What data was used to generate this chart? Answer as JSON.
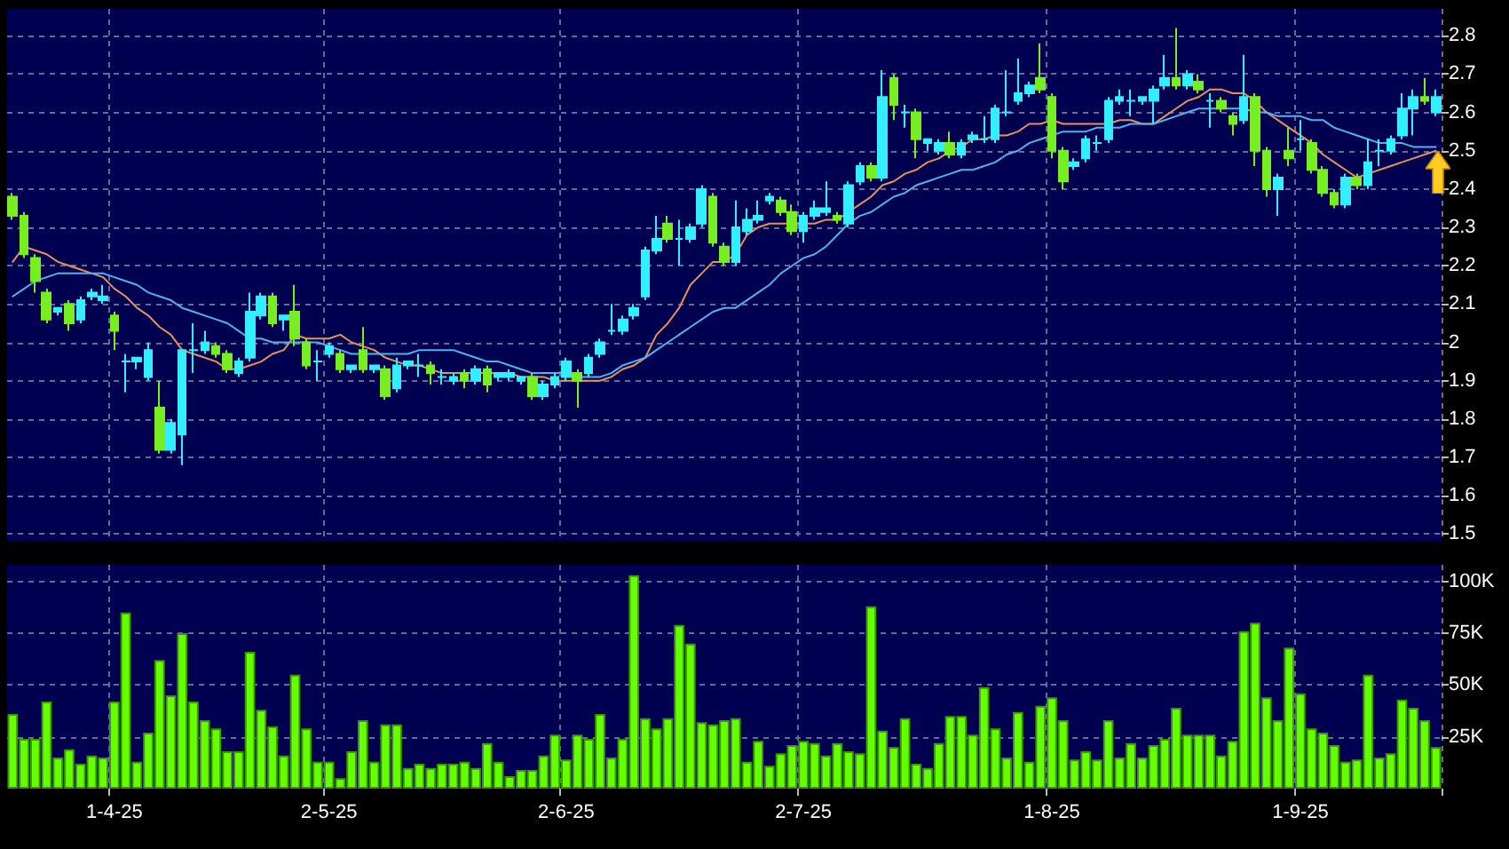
{
  "chart_data": [
    {
      "type": "candlestick",
      "categories": [
        null,
        null,
        null,
        null,
        null,
        null,
        null,
        null,
        null,
        null,
        null,
        null,
        null,
        null,
        null,
        null,
        null,
        null,
        null,
        null,
        null,
        null,
        null,
        null,
        null,
        null,
        null,
        null,
        null,
        null,
        null,
        null,
        null,
        null,
        null,
        null,
        null,
        null,
        null,
        null,
        null,
        null,
        null,
        null,
        null,
        null,
        null,
        null,
        null,
        null,
        null,
        null,
        null,
        null,
        null,
        null,
        null,
        null,
        null,
        null,
        null,
        null,
        null,
        null,
        null,
        null,
        null,
        null,
        null,
        null,
        null,
        null,
        null,
        null,
        null,
        null,
        null,
        null,
        null,
        null,
        null,
        null,
        null,
        null,
        null,
        null,
        null,
        null,
        null,
        null,
        null,
        null,
        null,
        null,
        null,
        null,
        null,
        null,
        null,
        null,
        null,
        null,
        null,
        null,
        null,
        null,
        null,
        null,
        null,
        null,
        null,
        null,
        null,
        null,
        null,
        null,
        null,
        null,
        null,
        null,
        null,
        null,
        null,
        null,
        null,
        null,
        null
      ],
      "ohlc": [
        [
          2.38,
          2.39,
          2.32,
          2.33
        ],
        [
          2.33,
          2.34,
          2.22,
          2.23
        ],
        [
          2.22,
          2.23,
          2.13,
          2.16
        ],
        [
          2.13,
          2.14,
          2.05,
          2.06
        ],
        [
          2.08,
          2.09,
          2.07,
          2.09
        ],
        [
          2.1,
          2.11,
          2.03,
          2.05
        ],
        [
          2.06,
          2.12,
          2.05,
          2.11
        ],
        [
          2.12,
          2.14,
          2.11,
          2.13
        ],
        [
          2.11,
          2.15,
          2.1,
          2.12
        ],
        [
          2.07,
          2.08,
          1.98,
          2.03
        ],
        [
          1.95,
          1.97,
          1.87,
          1.95
        ],
        [
          1.95,
          1.96,
          1.93,
          1.96
        ],
        [
          1.91,
          2.0,
          1.9,
          1.98
        ],
        [
          1.83,
          1.9,
          1.71,
          1.72
        ],
        [
          1.72,
          1.8,
          1.71,
          1.79
        ],
        [
          1.76,
          1.98,
          1.68,
          1.98
        ],
        [
          1.98,
          2.05,
          1.92,
          1.98
        ],
        [
          1.98,
          2.03,
          1.97,
          2.0
        ],
        [
          1.99,
          2.0,
          1.96,
          1.97
        ],
        [
          1.97,
          1.98,
          1.92,
          1.93
        ],
        [
          1.92,
          1.96,
          1.91,
          1.95
        ],
        [
          1.96,
          2.13,
          1.95,
          2.08
        ],
        [
          2.07,
          2.13,
          2.06,
          2.12
        ],
        [
          2.12,
          2.13,
          2.04,
          2.05
        ],
        [
          2.06,
          2.07,
          2.03,
          2.07
        ],
        [
          2.08,
          2.15,
          1.99,
          2.01
        ],
        [
          2.0,
          2.01,
          1.93,
          1.94
        ],
        [
          1.95,
          1.98,
          1.9,
          1.95
        ],
        [
          1.97,
          2.0,
          1.96,
          1.99
        ],
        [
          1.97,
          1.98,
          1.92,
          1.93
        ],
        [
          1.93,
          1.94,
          1.92,
          1.94
        ],
        [
          1.98,
          2.04,
          1.92,
          1.93
        ],
        [
          1.93,
          1.94,
          1.92,
          1.94
        ],
        [
          1.93,
          1.94,
          1.85,
          1.86
        ],
        [
          1.88,
          1.96,
          1.87,
          1.94
        ],
        [
          1.94,
          1.95,
          1.93,
          1.95
        ],
        [
          1.94,
          1.97,
          1.91,
          1.94
        ],
        [
          1.94,
          1.95,
          1.89,
          1.92
        ],
        [
          1.91,
          1.93,
          1.89,
          1.91
        ],
        [
          1.9,
          1.92,
          1.89,
          1.91
        ],
        [
          1.92,
          1.93,
          1.88,
          1.9
        ],
        [
          1.9,
          1.94,
          1.89,
          1.93
        ],
        [
          1.93,
          1.94,
          1.87,
          1.89
        ],
        [
          1.91,
          1.92,
          1.9,
          1.92
        ],
        [
          1.91,
          1.93,
          1.9,
          1.92
        ],
        [
          1.9,
          1.91,
          1.89,
          1.91
        ],
        [
          1.91,
          1.92,
          1.85,
          1.86
        ],
        [
          1.86,
          1.9,
          1.85,
          1.89
        ],
        [
          1.89,
          1.92,
          1.88,
          1.91
        ],
        [
          1.91,
          1.96,
          1.9,
          1.95
        ],
        [
          1.92,
          1.93,
          1.83,
          1.9
        ],
        [
          1.92,
          1.97,
          1.91,
          1.96
        ],
        [
          1.97,
          2.01,
          1.96,
          2.0
        ],
        [
          2.03,
          2.1,
          2.02,
          2.03
        ],
        [
          2.03,
          2.07,
          2.02,
          2.06
        ],
        [
          2.07,
          2.1,
          2.06,
          2.09
        ],
        [
          2.12,
          2.25,
          2.11,
          2.24
        ],
        [
          2.24,
          2.33,
          2.23,
          2.27
        ],
        [
          2.31,
          2.33,
          2.26,
          2.27
        ],
        [
          2.27,
          2.32,
          2.2,
          2.27
        ],
        [
          2.27,
          2.31,
          2.26,
          2.3
        ],
        [
          2.31,
          2.41,
          2.3,
          2.4
        ],
        [
          2.38,
          2.39,
          2.25,
          2.26
        ],
        [
          2.25,
          2.26,
          2.2,
          2.21
        ],
        [
          2.21,
          2.37,
          2.2,
          2.3
        ],
        [
          2.29,
          2.35,
          2.28,
          2.32
        ],
        [
          2.32,
          2.37,
          2.31,
          2.33
        ],
        [
          2.37,
          2.39,
          2.36,
          2.38
        ],
        [
          2.37,
          2.38,
          2.33,
          2.34
        ],
        [
          2.34,
          2.36,
          2.28,
          2.29
        ],
        [
          2.29,
          2.34,
          2.26,
          2.33
        ],
        [
          2.33,
          2.37,
          2.32,
          2.35
        ],
        [
          2.34,
          2.42,
          2.33,
          2.35
        ],
        [
          2.33,
          2.34,
          2.31,
          2.32
        ],
        [
          2.31,
          2.42,
          2.3,
          2.41
        ],
        [
          2.42,
          2.47,
          2.41,
          2.46
        ],
        [
          2.46,
          2.47,
          2.42,
          2.43
        ],
        [
          2.43,
          2.71,
          2.42,
          2.64
        ],
        [
          2.69,
          2.7,
          2.58,
          2.62
        ],
        [
          2.6,
          2.62,
          2.56,
          2.6
        ],
        [
          2.6,
          2.61,
          2.48,
          2.53
        ],
        [
          2.52,
          2.53,
          2.5,
          2.53
        ],
        [
          2.5,
          2.53,
          2.49,
          2.52
        ],
        [
          2.52,
          2.55,
          2.48,
          2.49
        ],
        [
          2.49,
          2.53,
          2.48,
          2.52
        ],
        [
          2.53,
          2.55,
          2.52,
          2.54
        ],
        [
          2.53,
          2.59,
          2.52,
          2.53
        ],
        [
          2.53,
          2.62,
          2.52,
          2.61
        ],
        [
          2.6,
          2.71,
          2.59,
          2.6
        ],
        [
          2.63,
          2.74,
          2.62,
          2.65
        ],
        [
          2.65,
          2.68,
          2.64,
          2.67
        ],
        [
          2.69,
          2.78,
          2.65,
          2.66
        ],
        [
          2.64,
          2.65,
          2.48,
          2.5
        ],
        [
          2.5,
          2.51,
          2.4,
          2.42
        ],
        [
          2.46,
          2.48,
          2.45,
          2.47
        ],
        [
          2.48,
          2.54,
          2.47,
          2.53
        ],
        [
          2.52,
          2.54,
          2.5,
          2.52
        ],
        [
          2.53,
          2.64,
          2.52,
          2.63
        ],
        [
          2.63,
          2.66,
          2.62,
          2.64
        ],
        [
          2.63,
          2.66,
          2.59,
          2.63
        ],
        [
          2.63,
          2.64,
          2.62,
          2.64
        ],
        [
          2.63,
          2.67,
          2.57,
          2.66
        ],
        [
          2.67,
          2.75,
          2.66,
          2.69
        ],
        [
          2.69,
          2.82,
          2.66,
          2.67
        ],
        [
          2.67,
          2.71,
          2.66,
          2.7
        ],
        [
          2.68,
          2.7,
          2.65,
          2.66
        ],
        [
          2.63,
          2.65,
          2.56,
          2.63
        ],
        [
          2.63,
          2.64,
          2.6,
          2.61
        ],
        [
          2.59,
          2.6,
          2.54,
          2.57
        ],
        [
          2.58,
          2.75,
          2.57,
          2.64
        ],
        [
          2.64,
          2.65,
          2.46,
          2.5
        ],
        [
          2.5,
          2.51,
          2.38,
          2.4
        ],
        [
          2.4,
          2.44,
          2.33,
          2.43
        ],
        [
          2.5,
          2.56,
          2.46,
          2.48
        ],
        [
          2.53,
          2.58,
          2.5,
          2.53
        ],
        [
          2.52,
          2.53,
          2.44,
          2.45
        ],
        [
          2.45,
          2.46,
          2.38,
          2.39
        ],
        [
          2.39,
          2.4,
          2.35,
          2.36
        ],
        [
          2.36,
          2.44,
          2.35,
          2.43
        ],
        [
          2.43,
          2.44,
          2.4,
          2.41
        ],
        [
          2.41,
          2.53,
          2.4,
          2.47
        ],
        [
          2.5,
          2.53,
          2.46,
          2.5
        ],
        [
          2.5,
          2.54,
          2.49,
          2.53
        ],
        [
          2.54,
          2.65,
          2.53,
          2.61
        ],
        [
          2.61,
          2.66,
          2.54,
          2.64
        ],
        [
          2.64,
          2.69,
          2.62,
          2.63
        ],
        [
          2.6,
          2.66,
          2.59,
          2.64
        ]
      ],
      "colors": [
        "#77ee22",
        "#77ee22",
        "#77ee22",
        "#77ee22",
        "#33eeff",
        "#77ee22",
        "#33eeff",
        "#33eeff",
        "#33eeff",
        "#77ee22",
        "#33eeff",
        "#33eeff",
        "#33eeff",
        "#77ee22",
        "#33eeff",
        "#33eeff",
        "#33eeff",
        "#33eeff",
        "#77ee22",
        "#77ee22",
        "#33eeff",
        "#33eeff",
        "#33eeff",
        "#77ee22",
        "#33eeff",
        "#77ee22",
        "#77ee22",
        "#33eeff",
        "#33eeff",
        "#77ee22",
        "#33eeff",
        "#77ee22",
        "#33eeff",
        "#77ee22",
        "#33eeff",
        "#33eeff",
        "#33eeff",
        "#77ee22",
        "#33eeff",
        "#33eeff",
        "#77ee22",
        "#33eeff",
        "#77ee22",
        "#33eeff",
        "#33eeff",
        "#33eeff",
        "#77ee22",
        "#33eeff",
        "#33eeff",
        "#33eeff",
        "#77ee22",
        "#33eeff",
        "#33eeff",
        "#33eeff",
        "#33eeff",
        "#33eeff",
        "#33eeff",
        "#33eeff",
        "#77ee22",
        "#33eeff",
        "#33eeff",
        "#33eeff",
        "#77ee22",
        "#77ee22",
        "#33eeff",
        "#33eeff",
        "#33eeff",
        "#33eeff",
        "#77ee22",
        "#77ee22",
        "#33eeff",
        "#33eeff",
        "#33eeff",
        "#77ee22",
        "#33eeff",
        "#33eeff",
        "#77ee22",
        "#33eeff",
        "#77ee22",
        "#33eeff",
        "#77ee22",
        "#33eeff",
        "#33eeff",
        "#77ee22",
        "#33eeff",
        "#33eeff",
        "#33eeff",
        "#33eeff",
        "#33eeff",
        "#33eeff",
        "#33eeff",
        "#77ee22",
        "#77ee22",
        "#77ee22",
        "#33eeff",
        "#33eeff",
        "#33eeff",
        "#33eeff",
        "#33eeff",
        "#33eeff",
        "#33eeff",
        "#33eeff",
        "#33eeff",
        "#77ee22",
        "#33eeff",
        "#77ee22",
        "#33eeff",
        "#77ee22",
        "#77ee22",
        "#33eeff",
        "#77ee22",
        "#77ee22",
        "#33eeff",
        "#77ee22",
        "#33eeff",
        "#77ee22",
        "#77ee22",
        "#77ee22",
        "#33eeff",
        "#77ee22",
        "#33eeff",
        "#33eeff",
        "#33eeff",
        "#33eeff",
        "#33eeff",
        "#77ee22",
        "#33eeff"
      ],
      "series": [
        {
          "type": "line",
          "color": "#e8915a",
          "values": [
            2.21,
            2.25,
            2.24,
            2.23,
            2.21,
            2.2,
            2.19,
            2.18,
            2.17,
            2.14,
            2.12,
            2.09,
            2.07,
            2.04,
            2.02,
            1.98,
            1.97,
            1.96,
            1.95,
            1.93,
            1.93,
            1.94,
            1.95,
            1.97,
            1.98,
            2.02,
            2.01,
            2.01,
            2.01,
            2.02,
            2.0,
            1.99,
            1.98,
            1.96,
            1.95,
            1.94,
            1.94,
            1.93,
            1.92,
            1.92,
            1.92,
            1.92,
            1.92,
            1.92,
            1.92,
            1.91,
            1.91,
            1.91,
            1.9,
            1.9,
            1.9,
            1.9,
            1.9,
            1.91,
            1.93,
            1.94,
            1.96,
            2.02,
            2.05,
            2.09,
            2.15,
            2.18,
            2.21,
            2.21,
            2.23,
            2.28,
            2.3,
            2.31,
            2.31,
            2.31,
            2.31,
            2.31,
            2.32,
            2.32,
            2.34,
            2.36,
            2.38,
            2.41,
            2.42,
            2.44,
            2.45,
            2.47,
            2.48,
            2.5,
            2.51,
            2.53,
            2.53,
            2.54,
            2.54,
            2.55,
            2.57,
            2.57,
            2.58,
            2.57,
            2.57,
            2.57,
            2.57,
            2.57,
            2.58,
            2.58,
            2.57,
            2.57,
            2.59,
            2.61,
            2.63,
            2.64,
            2.66,
            2.66,
            2.65,
            2.65,
            2.63,
            2.6,
            2.58,
            2.56,
            2.54,
            2.52,
            2.49,
            2.47,
            2.45,
            2.43,
            2.44,
            2.45,
            2.46,
            2.47,
            2.48,
            2.49,
            2.5
          ]
        },
        {
          "type": "line",
          "color": "#4fb3ec",
          "values": [
            2.12,
            2.14,
            2.16,
            2.17,
            2.18,
            2.18,
            2.18,
            2.18,
            2.18,
            2.17,
            2.16,
            2.15,
            2.13,
            2.12,
            2.11,
            2.09,
            2.08,
            2.07,
            2.06,
            2.05,
            2.03,
            2.01,
            2.01,
            2.0,
            2.0,
            2.0,
            2.0,
            2.0,
            1.99,
            1.98,
            1.97,
            1.97,
            1.97,
            1.97,
            1.97,
            1.97,
            1.98,
            1.98,
            1.98,
            1.98,
            1.97,
            1.96,
            1.95,
            1.95,
            1.94,
            1.93,
            1.92,
            1.92,
            1.92,
            1.92,
            1.91,
            1.91,
            1.91,
            1.92,
            1.94,
            1.95,
            1.96,
            1.98,
            2.0,
            2.02,
            2.04,
            2.06,
            2.08,
            2.09,
            2.09,
            2.11,
            2.13,
            2.15,
            2.18,
            2.2,
            2.22,
            2.23,
            2.25,
            2.28,
            2.31,
            2.33,
            2.34,
            2.36,
            2.38,
            2.39,
            2.41,
            2.42,
            2.43,
            2.44,
            2.45,
            2.45,
            2.46,
            2.47,
            2.49,
            2.5,
            2.52,
            2.53,
            2.54,
            2.55,
            2.55,
            2.55,
            2.56,
            2.56,
            2.56,
            2.57,
            2.57,
            2.57,
            2.58,
            2.59,
            2.6,
            2.61,
            2.61,
            2.61,
            2.61,
            2.61,
            2.6,
            2.6,
            2.59,
            2.59,
            2.59,
            2.58,
            2.58,
            2.56,
            2.55,
            2.54,
            2.53,
            2.52,
            2.52,
            2.52,
            2.51,
            2.51,
            2.51
          ]
        }
      ],
      "ylim": [
        1.48,
        2.87
      ],
      "yticks": [
        1.5,
        1.6,
        1.7,
        1.8,
        1.9,
        2,
        2.1,
        2.2,
        2.3,
        2.4,
        2.5,
        2.6,
        2.7,
        2.8
      ],
      "grid": true,
      "tick_labels": "y"
    },
    {
      "type": "bar",
      "categories": [
        null,
        null,
        null,
        null,
        null,
        null,
        null,
        null,
        null,
        "1-4-25",
        null,
        null,
        null,
        null,
        null,
        null,
        null,
        null,
        null,
        null,
        null,
        null,
        null,
        null,
        null,
        null,
        null,
        null,
        "2-5-25",
        null,
        null,
        null,
        null,
        null,
        null,
        null,
        null,
        null,
        null,
        null,
        null,
        null,
        null,
        null,
        null,
        null,
        null,
        null,
        null,
        "2-6-25",
        null,
        null,
        null,
        null,
        null,
        null,
        null,
        null,
        null,
        null,
        null,
        null,
        null,
        null,
        null,
        null,
        null,
        null,
        null,
        null,
        "2-7-25",
        null,
        null,
        null,
        null,
        null,
        null,
        null,
        null,
        null,
        null,
        null,
        null,
        null,
        null,
        null,
        null,
        null,
        null,
        null,
        null,
        null,
        "1-8-25",
        null,
        null,
        null,
        null,
        null,
        null,
        null,
        null,
        null,
        null,
        null,
        null,
        null,
        null,
        null,
        null,
        null,
        null,
        null,
        null,
        null,
        "1-9-25",
        null,
        null,
        null,
        null,
        null,
        null,
        null,
        null,
        null,
        null,
        null,
        null
      ],
      "values": [
        36000,
        24000,
        24000,
        42000,
        15000,
        19000,
        12000,
        16000,
        15000,
        42000,
        85000,
        13000,
        27000,
        62000,
        45000,
        75000,
        42000,
        33000,
        29000,
        18000,
        18000,
        66000,
        38000,
        30000,
        16000,
        55000,
        29000,
        13000,
        13000,
        5000,
        18000,
        33000,
        13000,
        31000,
        31000,
        10000,
        12000,
        10000,
        12000,
        12000,
        13000,
        10000,
        22000,
        13000,
        6000,
        9000,
        9000,
        16000,
        26000,
        14000,
        26000,
        24000,
        36000,
        15000,
        24000,
        103000,
        34000,
        29000,
        34000,
        79000,
        70000,
        32000,
        31000,
        33000,
        34000,
        13000,
        23000,
        11000,
        17000,
        21000,
        23000,
        22000,
        16000,
        22000,
        18000,
        17000,
        88000,
        28000,
        20000,
        34000,
        12000,
        10000,
        22000,
        35000,
        35000,
        26000,
        49000,
        29000,
        15000,
        37000,
        13000,
        40000,
        44000,
        33000,
        14000,
        18000,
        14000,
        33000,
        15000,
        22000,
        15000,
        21000,
        24000,
        39000,
        26000,
        26000,
        26000,
        16000,
        23000,
        76000,
        80000,
        44000,
        33000,
        68000,
        46000,
        29000,
        27000,
        21000,
        13000,
        14000,
        55000,
        15000,
        17000,
        43000,
        39000,
        33000,
        20000
      ],
      "color": "#66ff00",
      "ylim": [
        0,
        108000
      ],
      "yticks": [
        {
          "value": 25000,
          "label": "25K"
        },
        {
          "value": 50000,
          "label": "50K"
        },
        {
          "value": 75000,
          "label": "75K"
        },
        {
          "value": 100000,
          "label": "100K"
        }
      ],
      "grid": true
    }
  ]
}
